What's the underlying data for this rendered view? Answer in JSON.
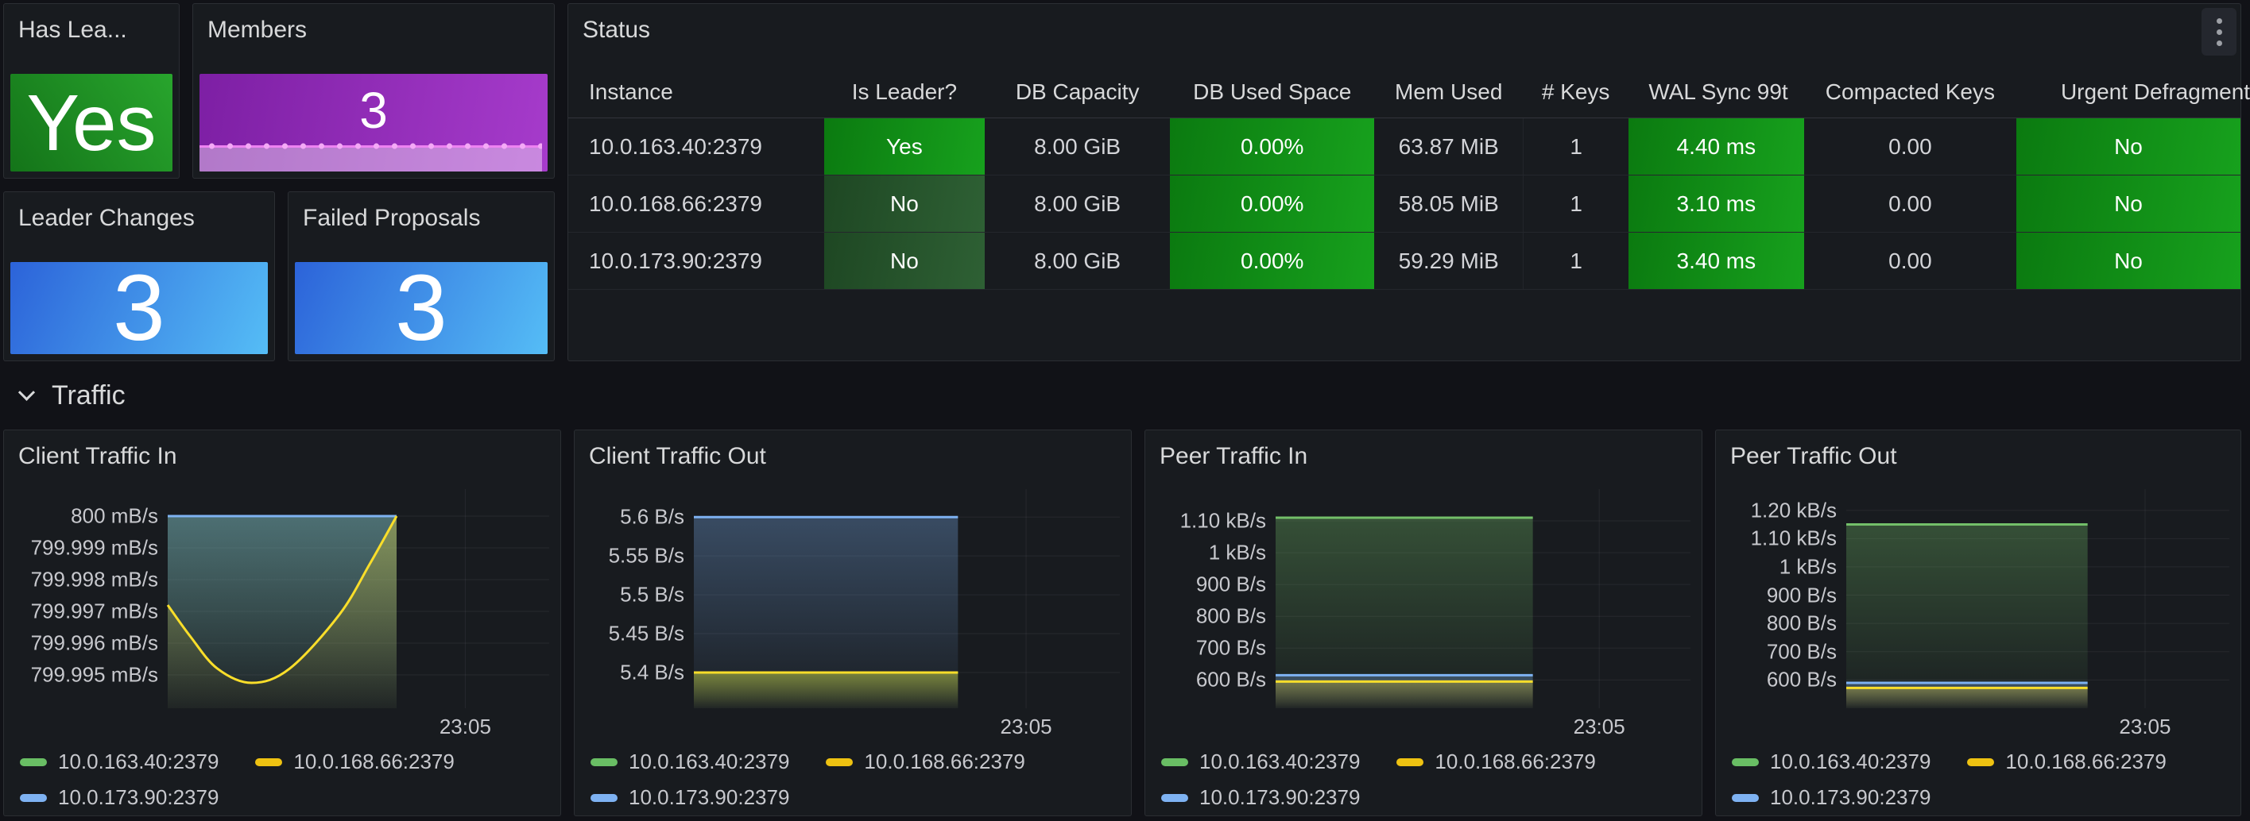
{
  "colors": {
    "series": {
      "green": "#73BF69",
      "yellow": "#FADE2A",
      "blue": "#7EB2F2"
    },
    "legend_pills": {
      "green": "#69be64",
      "yellow": "#eec211",
      "blue": "#7eb2f2"
    },
    "cell_green": "#108a15",
    "cell_dim_green": "#28542e",
    "stat_green": "#1d9423",
    "stat_blue": "#3a8ae6",
    "stat_purple": "#9232bb",
    "grid": "rgba(204,204,220,0.08)"
  },
  "stat_panels": [
    {
      "title": "Has Lea...",
      "value": "Yes"
    },
    {
      "title": "Members",
      "value": "3"
    },
    {
      "title": "Leader Changes",
      "value": "3"
    },
    {
      "title": "Failed Proposals",
      "value": "3"
    }
  ],
  "status": {
    "title": "Status",
    "columns": [
      {
        "label": "Instance"
      },
      {
        "label": "Is Leader?"
      },
      {
        "label": "DB Capacity"
      },
      {
        "label": "DB Used Space"
      },
      {
        "label": "Mem Used"
      },
      {
        "label": "# Keys"
      },
      {
        "label": "WAL Sync 99t",
        "clip": true
      },
      {
        "label": "Compacted Keys"
      },
      {
        "label": "Urgent Defragment",
        "clip": true
      }
    ],
    "rows": [
      [
        {
          "v": "10.0.163.40:2379"
        },
        {
          "v": "Yes",
          "s": "green"
        },
        {
          "v": "8.00 GiB"
        },
        {
          "v": "0.00%",
          "s": "green"
        },
        {
          "v": "63.87 MiB"
        },
        {
          "v": "1"
        },
        {
          "v": "4.40 ms",
          "s": "green"
        },
        {
          "v": "0.00"
        },
        {
          "v": "No",
          "s": "green"
        }
      ],
      [
        {
          "v": "10.0.168.66:2379"
        },
        {
          "v": "No",
          "s": "dimgreen"
        },
        {
          "v": "8.00 GiB"
        },
        {
          "v": "0.00%",
          "s": "green"
        },
        {
          "v": "58.05 MiB"
        },
        {
          "v": "1"
        },
        {
          "v": "3.10 ms",
          "s": "green"
        },
        {
          "v": "0.00"
        },
        {
          "v": "No",
          "s": "green"
        }
      ],
      [
        {
          "v": "10.0.173.90:2379"
        },
        {
          "v": "No",
          "s": "dimgreen"
        },
        {
          "v": "8.00 GiB"
        },
        {
          "v": "0.00%",
          "s": "green"
        },
        {
          "v": "59.29 MiB"
        },
        {
          "v": "1"
        },
        {
          "v": "3.40 ms",
          "s": "green"
        },
        {
          "v": "0.00"
        },
        {
          "v": "No",
          "s": "green"
        }
      ]
    ]
  },
  "section": {
    "label": "Traffic"
  },
  "legend": [
    {
      "label": "10.0.163.40:2379",
      "color": "green"
    },
    {
      "label": "10.0.168.66:2379",
      "color": "yellow"
    },
    {
      "label": "10.0.173.90:2379",
      "color": "blue"
    }
  ],
  "chart_data": [
    {
      "type": "area",
      "title": "Client Traffic In",
      "x_tick_label": "23:05",
      "x_tick_pos": 0.78,
      "ylim": [
        799.99395,
        800.00085
      ],
      "grid": true,
      "legend_position": "bottom",
      "yticks": [
        {
          "v": 800,
          "label": "800 mB/s"
        },
        {
          "v": 799.999,
          "label": "799.999 mB/s"
        },
        {
          "v": 799.998,
          "label": "799.998 mB/s"
        },
        {
          "v": 799.997,
          "label": "799.997 mB/s"
        },
        {
          "v": 799.996,
          "label": "799.996 mB/s"
        },
        {
          "v": 799.995,
          "label": "799.995 mB/s"
        }
      ],
      "series": [
        {
          "name": "10.0.163.40:2379",
          "color": "green",
          "points": [
            [
              0,
              800
            ],
            [
              0.6,
              800
            ]
          ]
        },
        {
          "name": "10.0.173.90:2379",
          "color": "blue",
          "points": [
            [
              0,
              800
            ],
            [
              0.6,
              800
            ]
          ]
        },
        {
          "name": "10.0.168.66:2379",
          "color": "yellow",
          "smooth": true,
          "points": [
            [
              0,
              799.9972
            ],
            [
              0.06,
              799.9962
            ],
            [
              0.13,
              799.9952
            ],
            [
              0.22,
              799.99475
            ],
            [
              0.32,
              799.9952
            ],
            [
              0.45,
              799.9969
            ],
            [
              0.53,
              799.9985
            ],
            [
              0.6,
              800
            ]
          ]
        }
      ]
    },
    {
      "type": "area",
      "title": "Client Traffic Out",
      "x_tick_label": "23:05",
      "x_tick_pos": 0.78,
      "ylim": [
        5.354,
        5.636
      ],
      "grid": true,
      "legend_position": "bottom",
      "yticks": [
        {
          "v": 5.6,
          "label": "5.6 B/s"
        },
        {
          "v": 5.55,
          "label": "5.55 B/s"
        },
        {
          "v": 5.5,
          "label": "5.5 B/s"
        },
        {
          "v": 5.45,
          "label": "5.45 B/s"
        },
        {
          "v": 5.4,
          "label": "5.4 B/s"
        }
      ],
      "series": [
        {
          "name": "10.0.163.40:2379",
          "color": "green",
          "points": [
            [
              0,
              5.4
            ],
            [
              0.62,
              5.4
            ]
          ]
        },
        {
          "name": "10.0.173.90:2379",
          "color": "blue",
          "points": [
            [
              0,
              5.6
            ],
            [
              0.62,
              5.6
            ]
          ]
        },
        {
          "name": "10.0.168.66:2379",
          "color": "yellow",
          "points": [
            [
              0,
              5.4
            ],
            [
              0.62,
              5.4
            ]
          ]
        }
      ]
    },
    {
      "type": "area",
      "title": "Peer Traffic In",
      "x_tick_label": "23:05",
      "x_tick_pos": 0.78,
      "ylim": [
        511,
        1200
      ],
      "grid": true,
      "legend_position": "bottom",
      "yticks": [
        {
          "v": 1100,
          "label": "1.10 kB/s"
        },
        {
          "v": 1000,
          "label": "1 kB/s"
        },
        {
          "v": 900,
          "label": "900 B/s"
        },
        {
          "v": 800,
          "label": "800 B/s"
        },
        {
          "v": 700,
          "label": "700 B/s"
        },
        {
          "v": 600,
          "label": "600 B/s"
        }
      ],
      "series": [
        {
          "name": "10.0.163.40:2379",
          "color": "green",
          "points": [
            [
              0,
              1110
            ],
            [
              0.62,
              1110
            ]
          ]
        },
        {
          "name": "10.0.173.90:2379",
          "color": "blue",
          "points": [
            [
              0,
              615
            ],
            [
              0.62,
              615
            ]
          ]
        },
        {
          "name": "10.0.168.66:2379",
          "color": "yellow",
          "points": [
            [
              0,
              595
            ],
            [
              0.62,
              595
            ]
          ]
        }
      ]
    },
    {
      "type": "area",
      "title": "Peer Traffic Out",
      "x_tick_label": "23:05",
      "x_tick_pos": 0.78,
      "ylim": [
        500,
        1275
      ],
      "grid": true,
      "legend_position": "bottom",
      "yticks": [
        {
          "v": 1200,
          "label": "1.20 kB/s"
        },
        {
          "v": 1100,
          "label": "1.10 kB/s"
        },
        {
          "v": 1000,
          "label": "1 kB/s"
        },
        {
          "v": 900,
          "label": "900 B/s"
        },
        {
          "v": 800,
          "label": "800 B/s"
        },
        {
          "v": 700,
          "label": "700 B/s"
        },
        {
          "v": 600,
          "label": "600 B/s"
        }
      ],
      "series": [
        {
          "name": "10.0.163.40:2379",
          "color": "green",
          "points": [
            [
              0,
              1150
            ],
            [
              0.63,
              1150
            ]
          ]
        },
        {
          "name": "10.0.173.90:2379",
          "color": "blue",
          "points": [
            [
              0,
              590
            ],
            [
              0.63,
              590
            ]
          ]
        },
        {
          "name": "10.0.168.66:2379",
          "color": "yellow",
          "points": [
            [
              0,
              572
            ],
            [
              0.63,
              572
            ]
          ]
        }
      ]
    }
  ]
}
